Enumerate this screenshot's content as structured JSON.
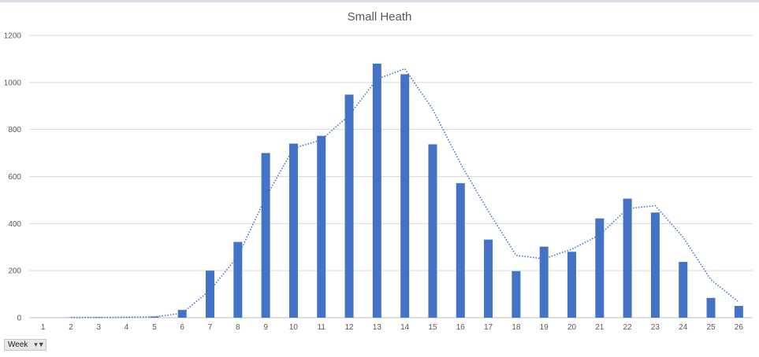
{
  "chart_data": {
    "type": "bar",
    "title": "Small Heath",
    "xlabel": "",
    "ylabel": "",
    "categories": [
      "1",
      "2",
      "3",
      "4",
      "5",
      "6",
      "7",
      "8",
      "9",
      "10",
      "11",
      "12",
      "13",
      "14",
      "15",
      "16",
      "17",
      "18",
      "19",
      "20",
      "21",
      "22",
      "23",
      "24",
      "25",
      "26"
    ],
    "series": [
      {
        "kind": "bar",
        "values": [
          0,
          1,
          2,
          1,
          5,
          33,
          200,
          322,
          700,
          740,
          773,
          948,
          1080,
          1035,
          737,
          572,
          332,
          198,
          302,
          280,
          422,
          506,
          447,
          237,
          84,
          50
        ]
      },
      {
        "kind": "trendline-dotted",
        "values": [
          null,
          1,
          1,
          2,
          3,
          19,
          117,
          261,
          511,
          720,
          756,
          860,
          1014,
          1058,
          886,
          655,
          452,
          265,
          250,
          291,
          351,
          464,
          476,
          342,
          161,
          67
        ]
      }
    ],
    "ylim": [
      0,
      1200
    ],
    "yticks": [
      "0",
      "200",
      "400",
      "600",
      "800",
      "1000",
      "1200"
    ],
    "grid": true,
    "legend": "none",
    "colors": {
      "bar": "#4472c4",
      "line": "#4472c4",
      "grid": "#d9d9d9",
      "axis": "#bfbfbf"
    }
  },
  "field_button": {
    "label": "Week",
    "icon": "filter-dropdown-icon"
  }
}
